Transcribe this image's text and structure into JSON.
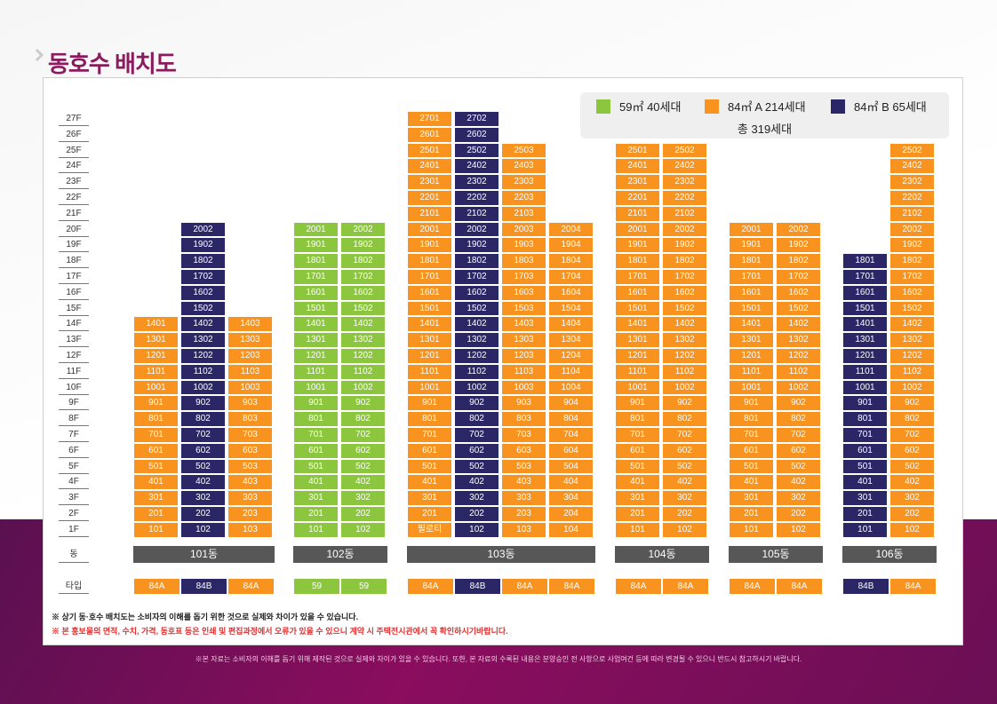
{
  "title": "동호수 배치도",
  "legend": {
    "items": [
      {
        "label": "59㎡ 40세대",
        "color": "#8cc63f"
      },
      {
        "label": "84㎡ A 214세대",
        "color": "#f7931e"
      },
      {
        "label": "84㎡ B 65세대",
        "color": "#2b2666"
      }
    ],
    "total": "총 319세대"
  },
  "floors": [
    "27F",
    "26F",
    "25F",
    "24F",
    "23F",
    "22F",
    "21F",
    "20F",
    "19F",
    "18F",
    "17F",
    "16F",
    "15F",
    "14F",
    "13F",
    "12F",
    "11F",
    "10F",
    "9F",
    "8F",
    "7F",
    "6F",
    "5F",
    "4F",
    "3F",
    "2F",
    "1F"
  ],
  "row_labels": {
    "dong": "동",
    "type": "타입"
  },
  "buildings": [
    {
      "name": "101동",
      "lines": [
        {
          "type": "84A",
          "top": 14,
          "suffix": "01",
          "colorKey": "84A"
        },
        {
          "type": "84B",
          "top": 20,
          "suffix": "02",
          "colorKey": "84B"
        },
        {
          "type": "84A",
          "top": 14,
          "suffix": "03",
          "colorKey": "84A"
        }
      ]
    },
    {
      "name": "102동",
      "lines": [
        {
          "type": "59",
          "top": 20,
          "suffix": "01",
          "colorKey": "59"
        },
        {
          "type": "59",
          "top": 20,
          "suffix": "02",
          "colorKey": "59"
        }
      ]
    },
    {
      "name": "103동",
      "lines": [
        {
          "type": "84A",
          "top": 27,
          "suffix": "01",
          "colorKey": "84A",
          "firstFloorLabel": "필로티"
        },
        {
          "type": "84B",
          "top": 27,
          "suffix": "02",
          "colorKey": "84B"
        },
        {
          "type": "84A",
          "top": 25,
          "suffix": "03",
          "colorKey": "84A"
        },
        {
          "type": "84A",
          "top": 20,
          "suffix": "04",
          "colorKey": "84A"
        }
      ]
    },
    {
      "name": "104동",
      "lines": [
        {
          "type": "84A",
          "top": 25,
          "suffix": "01",
          "colorKey": "84A"
        },
        {
          "type": "84A",
          "top": 25,
          "suffix": "02",
          "colorKey": "84A"
        }
      ]
    },
    {
      "name": "105동",
      "lines": [
        {
          "type": "84A",
          "top": 20,
          "suffix": "01",
          "colorKey": "84A"
        },
        {
          "type": "84A",
          "top": 20,
          "suffix": "02",
          "colorKey": "84A"
        }
      ]
    },
    {
      "name": "106동",
      "lines": [
        {
          "type": "84B",
          "top": 18,
          "suffix": "01",
          "colorKey": "84B"
        },
        {
          "type": "84A",
          "top": 25,
          "suffix": "02",
          "colorKey": "84A"
        }
      ]
    }
  ],
  "type_colors": {
    "59": "#8cc63f",
    "84A": "#f7931e",
    "84B": "#2b2666"
  },
  "notes": [
    "※ 상기 동·호수 배치도는 소비자의 이해를 돕기 위한 것으로 실제와 차이가 있을 수 있습니다.",
    "※ 본 홍보물의 면적, 수치, 가격, 동호표 등은 인쇄 및 편집과정에서 오류가 있을 수 있으니 계약 시 주택전시관에서 꼭 확인하시기바랍니다."
  ],
  "footer": "※본 자료는 소비자의 이해를 돕기 위해 제작된 것으로 실제와 차이가 있을 수 있습니다. 또한, 본 자료의 수록된 내용은 분양승인 전 사항으로 사업여건 등에 따라 변경될 수 있으니 반드시 참고하시기 바랍니다."
}
